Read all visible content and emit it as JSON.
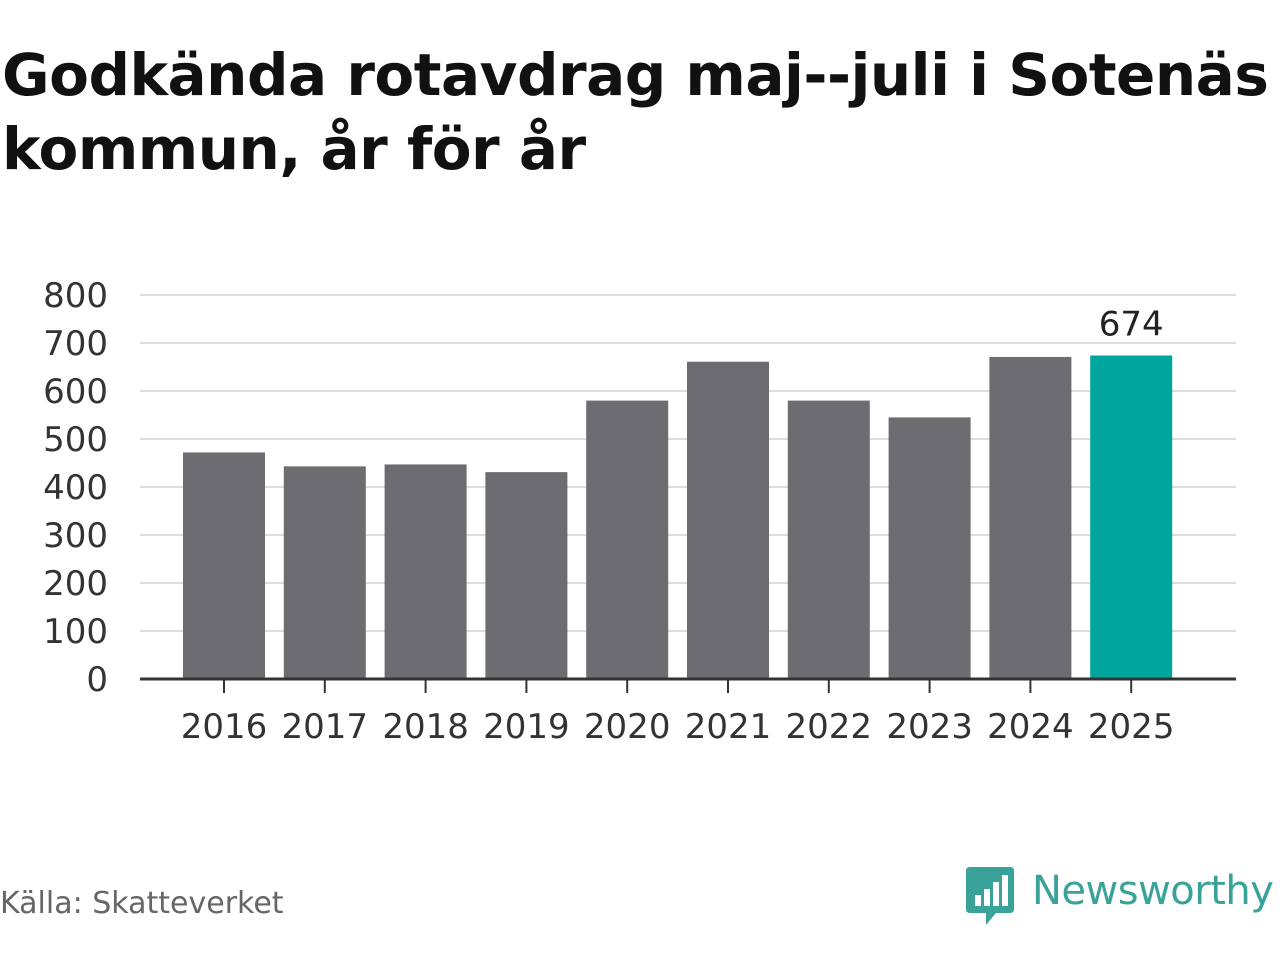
{
  "title": "Godkända rotavdrag maj--juli i Sotenäs kommun, år för år",
  "source": "Källa: Skatteverket",
  "brand": {
    "name": "Newsworthy",
    "icon": "newsworthy-logo-icon",
    "color": "#3aa399"
  },
  "chart_data": {
    "type": "bar",
    "title": "Godkända rotavdrag maj--juli i Sotenäs kommun, år för år",
    "xlabel": "",
    "ylabel": "",
    "categories": [
      "2016",
      "2017",
      "2018",
      "2019",
      "2020",
      "2021",
      "2022",
      "2023",
      "2024",
      "2025"
    ],
    "values": [
      472,
      443,
      447,
      431,
      580,
      661,
      580,
      545,
      671,
      674
    ],
    "ylim": [
      0,
      800
    ],
    "yticks": [
      "0",
      "100",
      "200",
      "300",
      "400",
      "500",
      "600",
      "700",
      "800"
    ],
    "grid": true,
    "bar_color": "#6d6c71",
    "highlight_color": "#00a59c",
    "highlight_index": 9,
    "data_labels": [
      {
        "index": 9,
        "text": "674"
      }
    ]
  }
}
